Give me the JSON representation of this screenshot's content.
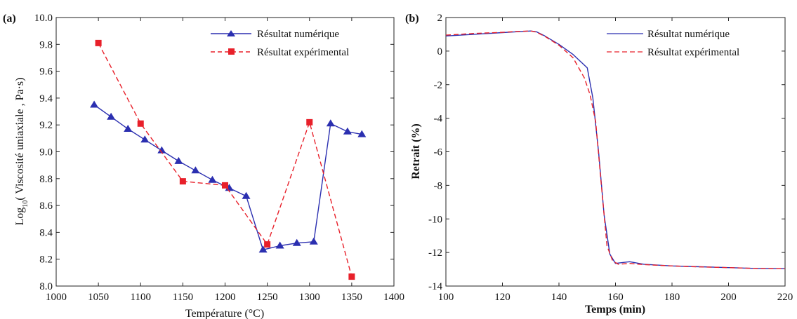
{
  "colors": {
    "numeric": "#2b2fb0",
    "experimental": "#e8202a",
    "axis": "#222222"
  },
  "chart_data": [
    {
      "type": "line",
      "panel_label": "(a)",
      "xlabel": "Température (°C)",
      "ylabel": "Log₁₀( Viscosité uniaxiale , Pa·s)",
      "ylabel_main": "Log",
      "ylabel_sub": "10",
      "ylabel_rest": "( Viscosité uniaxiale , Pa·s)",
      "xlim": [
        1000,
        1400
      ],
      "ylim": [
        8.0,
        10.0
      ],
      "xticks": [
        "1000",
        "1050",
        "1100",
        "1150",
        "1200",
        "1250",
        "1300",
        "1350",
        "1400"
      ],
      "yticks": [
        "8.0",
        "8.2",
        "8.4",
        "8.6",
        "8.8",
        "9.0",
        "9.2",
        "9.4",
        "9.6",
        "9.8",
        "10.0"
      ],
      "grid": false,
      "legend_position": "top-right",
      "series": [
        {
          "name": "Résultat numérique",
          "style": "solid",
          "marker": "triangle",
          "x": [
            1045,
            1065,
            1085,
            1105,
            1125,
            1145,
            1165,
            1185,
            1205,
            1225,
            1245,
            1265,
            1285,
            1305,
            1325,
            1345,
            1362
          ],
          "y": [
            9.35,
            9.26,
            9.17,
            9.09,
            9.01,
            8.93,
            8.86,
            8.79,
            8.73,
            8.67,
            8.27,
            8.3,
            8.32,
            8.33,
            9.21,
            9.15,
            9.13
          ]
        },
        {
          "name": "Résultat expérimental",
          "style": "dashed",
          "marker": "square",
          "x": [
            1050,
            1100,
            1150,
            1200,
            1250,
            1300,
            1350
          ],
          "y": [
            9.81,
            9.21,
            8.78,
            8.75,
            8.31,
            9.22,
            8.07
          ]
        }
      ]
    },
    {
      "type": "line",
      "panel_label": "(b)",
      "xlabel": "Temps (min)",
      "ylabel": "Retrait (%)",
      "xlim": [
        100,
        220
      ],
      "ylim": [
        -14,
        2
      ],
      "xticks": [
        "100",
        "120",
        "140",
        "160",
        "180",
        "200",
        "220"
      ],
      "yticks": [
        "-14",
        "-12",
        "-10",
        "-8",
        "-6",
        "-4",
        "-2",
        "0",
        "2"
      ],
      "grid": false,
      "legend_position": "top-right",
      "series": [
        {
          "name": "Résultat numérique",
          "style": "solid",
          "x": [
            100,
            110,
            120,
            125,
            130,
            132,
            135,
            140,
            145,
            150,
            152,
            154,
            156,
            158,
            160,
            165,
            170,
            180,
            190,
            200,
            210,
            220
          ],
          "y": [
            0.9,
            1.0,
            1.1,
            1.15,
            1.2,
            1.15,
            0.9,
            0.4,
            -0.2,
            -1.0,
            -2.8,
            -6.0,
            -9.8,
            -12.1,
            -12.65,
            -12.55,
            -12.7,
            -12.8,
            -12.85,
            -12.9,
            -12.95,
            -12.97
          ]
        },
        {
          "name": "Résultat expérimental",
          "style": "dashed",
          "x": [
            100,
            110,
            120,
            125,
            130,
            132,
            135,
            140,
            145,
            149,
            151,
            153,
            155,
            157,
            159,
            161,
            165,
            170,
            180,
            190,
            200,
            210,
            220
          ],
          "y": [
            0.95,
            1.05,
            1.12,
            1.17,
            1.2,
            1.13,
            0.88,
            0.35,
            -0.4,
            -1.6,
            -2.6,
            -4.2,
            -8.0,
            -11.6,
            -12.5,
            -12.7,
            -12.65,
            -12.72,
            -12.8,
            -12.86,
            -12.9,
            -12.95,
            -12.97
          ]
        }
      ]
    }
  ]
}
